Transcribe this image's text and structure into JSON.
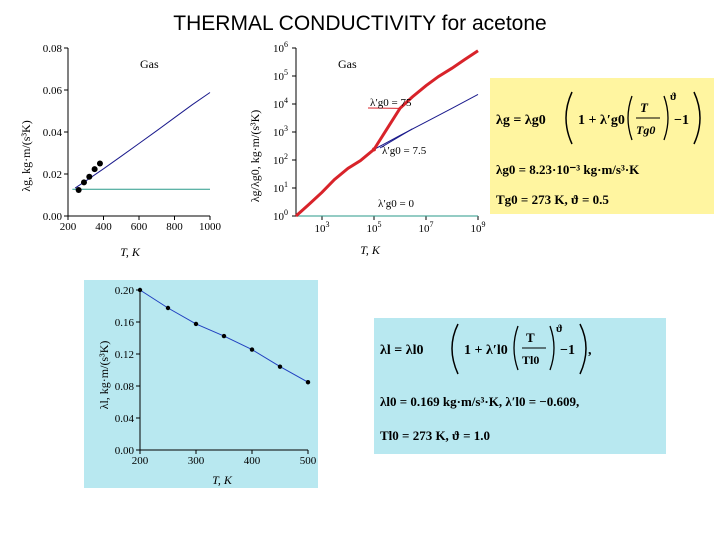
{
  "title": "THERMAL CONDUCTIVITY for acetone",
  "colors": {
    "curve": "#1a1a8c",
    "baseline": "#2a9a8a",
    "red": "#d8232a",
    "formula_bg": "#fff5a0",
    "formula2_bg": "#b8e8f0",
    "chart3_bg": "#b8e8f0",
    "chart3_line": "#2040c0"
  },
  "chart_data": [
    {
      "type": "line",
      "xlabel": "T, K",
      "ylabel": "λg, kg·m/(s³K)",
      "legend": "Gas",
      "xlim": [
        200,
        1000
      ],
      "ylim": [
        0,
        0.08
      ],
      "xticks": [
        "200",
        "400",
        "600",
        "800",
        "1000"
      ],
      "yticks": [
        "0.00",
        "0.02",
        "0.04",
        "0.06",
        "0.08"
      ],
      "series": [
        {
          "x": [
            240,
            300,
            400,
            500,
            600,
            700,
            800,
            900,
            1000
          ],
          "y": [
            0.0133,
            0.0167,
            0.0225,
            0.0285,
            0.0345,
            0.0406,
            0.0468,
            0.053,
            0.0588
          ]
        },
        {
          "x": [
            225,
            1000
          ],
          "y": [
            0.0127,
            0.0127
          ]
        }
      ],
      "points": {
        "x": [
          260,
          290,
          320,
          350,
          380
        ],
        "y": [
          0.0124,
          0.016,
          0.0187,
          0.0223,
          0.025
        ]
      }
    },
    {
      "type": "line",
      "xlabel": "T, K",
      "ylabel": "λg/λg0, kg·m/(s³K)",
      "legend": "Gas",
      "xscale": "log",
      "yscale": "log",
      "xlim": [
        100,
        1000000000
      ],
      "ylim": [
        1,
        1000000
      ],
      "xticks": [
        "10^3",
        "10^5",
        "10^7",
        "10^9"
      ],
      "yticks": [
        "10^0",
        "10^1",
        "10^2",
        "10^3",
        "10^4",
        "10^5",
        "10^6"
      ],
      "annotations": [
        "λ′g0 = 75",
        "λ′g0 = 7.5",
        "λ′g0 = 0"
      ],
      "series": [
        {
          "name": "λ′g0 = 75",
          "x": [
            100,
            300,
            1000,
            3000,
            10000,
            30000,
            100000,
            300000,
            1000000,
            3000000,
            10000000,
            30000000,
            100000000,
            300000000,
            1000000000
          ],
          "y": [
            1,
            2.5,
            7,
            20,
            50,
            95,
            240,
            1200,
            7000,
            18000,
            45000,
            95000,
            190000,
            380000,
            800000
          ]
        },
        {
          "name": "λ′g0 = 7.5",
          "x": [
            100000,
            1000000,
            10000000,
            100000000,
            1000000000
          ],
          "y": [
            240,
            750,
            2300,
            7000,
            22000
          ]
        },
        {
          "name": "λ′g0 = 0",
          "x": [
            100,
            1000000000
          ],
          "y": [
            1,
            1
          ]
        }
      ]
    },
    {
      "type": "line",
      "xlabel": "T, K",
      "ylabel": "λl, kg·m/(s³K)",
      "xlim": [
        200,
        500
      ],
      "ylim": [
        0,
        0.2
      ],
      "xticks": [
        "200",
        "300",
        "400",
        "500"
      ],
      "yticks": [
        "0.00",
        "0.04",
        "0.08",
        "0.12",
        "0.16",
        "0.20"
      ],
      "series": [
        {
          "x": [
            200,
            250,
            300,
            350,
            400,
            450,
            500
          ],
          "y": [
            0.2,
            0.1775,
            0.1576,
            0.1424,
            0.1255,
            0.1042,
            0.0847
          ]
        }
      ]
    }
  ],
  "formula1": {
    "eq1_lhs": "λg = λg0",
    "eq1_coef": "λ′g0",
    "eq1_num": "T",
    "eq1_den": "Tg0",
    "eq1_exp": "ϑ",
    "eq2": "λg0 = 8.23·10⁻³ kg·m/s³·K",
    "eq3": "Tg0 = 273 K,  ϑ = 0.5"
  },
  "formula2": {
    "eq1_lhs": "λl = λl0",
    "eq1_coef": "λ′l0",
    "eq1_num": "T",
    "eq1_den": "Tl0",
    "eq1_exp": "ϑ",
    "eq2": "λl0 = 0.169 kg·m/s³·K,  λ′l0 = −0.609,",
    "eq3": "Tl0 = 273 K,  ϑ = 1.0"
  }
}
